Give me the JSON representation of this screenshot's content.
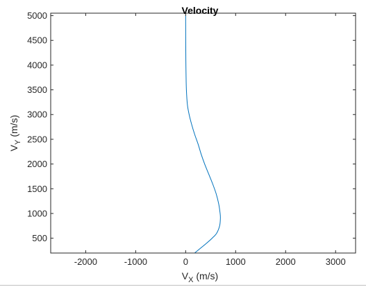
{
  "chart_data": {
    "type": "line",
    "title": "Velocity",
    "xlabel": {
      "main": "V",
      "sub": "X",
      "unit": " (m/s)"
    },
    "ylabel": {
      "main": "V",
      "sub": "Y",
      "unit": " (m/s)"
    },
    "xlim": [
      -2700,
      3400
    ],
    "ylim": [
      200,
      5050
    ],
    "xticks": [
      -2000,
      -1000,
      0,
      1000,
      2000,
      3000
    ],
    "yticks": [
      500,
      1000,
      1500,
      2000,
      2500,
      3000,
      3500,
      4000,
      4500,
      5000
    ],
    "grid": false,
    "series": [
      {
        "color": "#0072BD",
        "x": [
          180,
          300,
          420,
          530,
          620,
          680,
          695,
          690,
          660,
          610,
          540,
          460,
          380,
          310,
          250,
          180,
          120,
          70,
          35,
          15,
          8,
          4,
          2,
          1,
          0
        ],
        "y": [
          200,
          300,
          400,
          500,
          600,
          750,
          900,
          1000,
          1200,
          1400,
          1600,
          1800,
          2000,
          2200,
          2400,
          2600,
          2800,
          3000,
          3200,
          3500,
          3800,
          4100,
          4400,
          4700,
          5000
        ]
      }
    ]
  }
}
